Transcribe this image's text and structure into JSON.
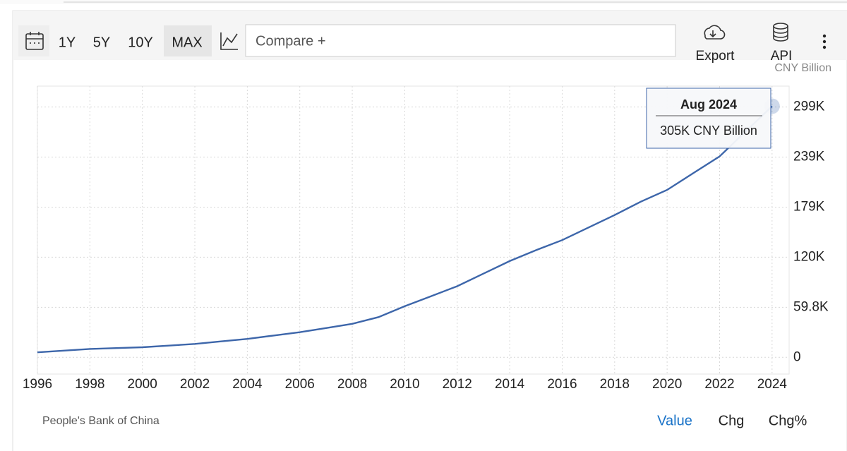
{
  "toolbar": {
    "ranges": [
      "1Y",
      "5Y",
      "10Y",
      "MAX"
    ],
    "selected_range": 3,
    "compare": "Compare +",
    "export": "Export",
    "api": "API"
  },
  "chart_data": {
    "type": "line",
    "unit": "CNY Billion",
    "x": [
      1996,
      1997,
      1998,
      1999,
      2000,
      2001,
      2002,
      2003,
      2004,
      2005,
      2006,
      2007,
      2008,
      2009,
      2010,
      2011,
      2012,
      2013,
      2014,
      2015,
      2016,
      2017,
      2018,
      2019,
      2020,
      2021,
      2022,
      2023,
      2024
    ],
    "series": [
      {
        "color": "#3d66aa",
        "values": [
          6000,
          8000,
          10000,
          11000,
          12000,
          14000,
          16000,
          19000,
          22000,
          26000,
          30000,
          35000,
          40000,
          48000,
          61000,
          73000,
          85000,
          100000,
          115000,
          128000,
          140000,
          155000,
          170000,
          186000,
          200000,
          220000,
          240000,
          270000,
          300000
        ]
      }
    ],
    "xlim": [
      1996,
      2024.65
    ],
    "xticks": [
      1996,
      1998,
      2000,
      2002,
      2004,
      2006,
      2008,
      2010,
      2012,
      2014,
      2016,
      2018,
      2020,
      2022,
      2024
    ],
    "ylim": [
      -20000,
      324000
    ],
    "yticks": [
      0,
      {
        "value": 59800,
        "label": "59.8K"
      },
      {
        "value": 119600,
        "label": "120K"
      },
      {
        "value": 179400,
        "label": "179K"
      },
      {
        "value": 239200,
        "label": "239K"
      },
      {
        "value": 299000,
        "label": "299K"
      }
    ],
    "grid": true,
    "tooltip": {
      "title": "Aug 2024",
      "text": "305K CNY Billion"
    }
  },
  "footer": {
    "source": "People's Bank of China",
    "tabs": [
      "Value",
      "Chg",
      "Chg%"
    ],
    "selected_tab": 0
  }
}
